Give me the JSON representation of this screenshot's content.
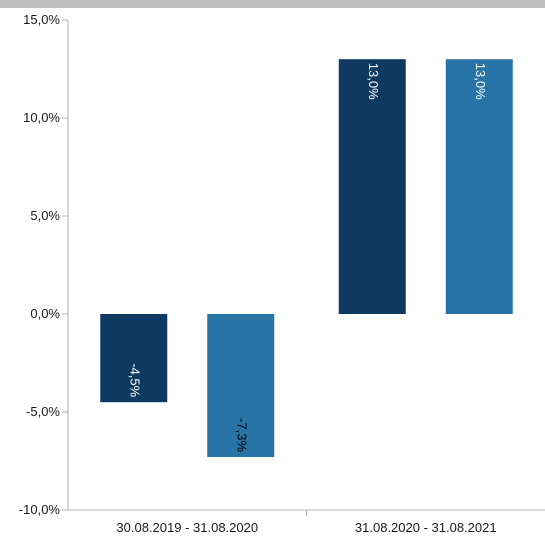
{
  "colors": {
    "top_strip": "#bfbfbf",
    "axis_line": "#b3b3b3",
    "tick_text": "#1a1a1a",
    "value_label_on_dark": "#ffffff",
    "value_label_on_light": "#000000"
  },
  "chart_data": {
    "type": "bar",
    "categories": [
      "30.08.2019 - 31.08.2020",
      "31.08.2020 - 31.08.2021"
    ],
    "series": [
      {
        "color": "#0e3a61",
        "values": [
          -4.5,
          13.0
        ],
        "labels": [
          "-4,5%",
          "13,0%"
        ]
      },
      {
        "color": "#2874a6",
        "values": [
          -7.3,
          13.0
        ],
        "labels": [
          "-7,3%",
          "13,0%"
        ]
      }
    ],
    "ylim": [
      -10,
      15
    ],
    "yticks": [
      15,
      10,
      5,
      0,
      -5,
      -10
    ],
    "ytick_labels": [
      "15,0%",
      "10,0%",
      "5,0%",
      "0,0%",
      "-5,0%",
      "-10,0%"
    ],
    "grid": false,
    "legend": "none",
    "title": "",
    "xlabel": "",
    "ylabel": ""
  }
}
